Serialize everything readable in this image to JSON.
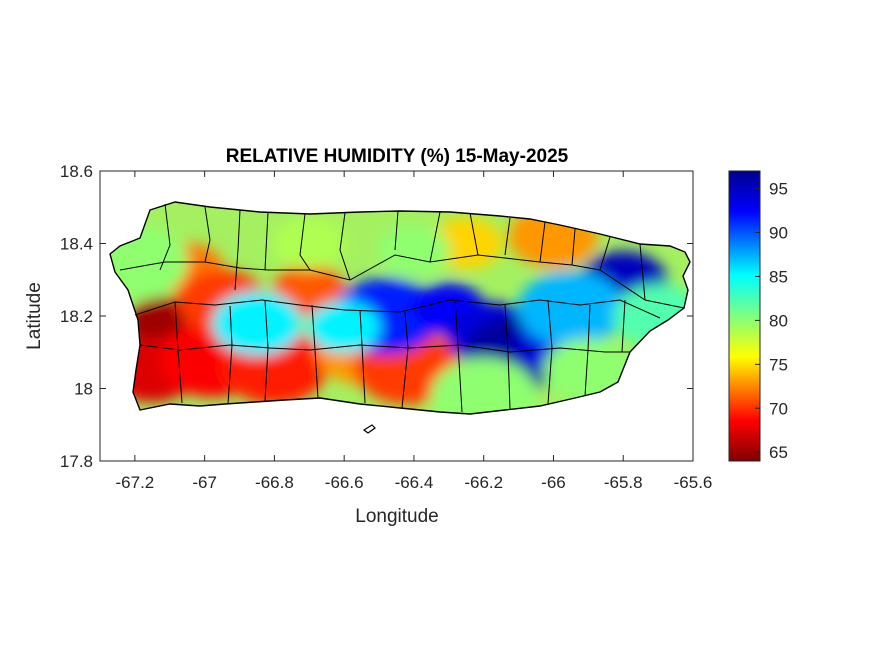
{
  "title": "RELATIVE HUMIDITY (%) 15-May-2025",
  "chart_data": {
    "type": "heatmap",
    "title": "RELATIVE HUMIDITY (%) 15-May-2025",
    "xlabel": "Longitude",
    "ylabel": "Latitude",
    "xlim": [
      -67.3,
      -65.6
    ],
    "ylim": [
      17.8,
      18.6
    ],
    "xticks": [
      -67.2,
      -67,
      -66.8,
      -66.6,
      -66.4,
      -66.2,
      -66,
      -65.8,
      -65.6
    ],
    "xtick_labels": [
      "-67.2",
      "-67",
      "-66.8",
      "-66.6",
      "-66.4",
      "-66.2",
      "-66",
      "-65.8",
      "-65.6"
    ],
    "yticks": [
      17.8,
      18,
      18.2,
      18.4,
      18.6
    ],
    "ytick_labels": [
      "17.8",
      "18",
      "18.2",
      "18.4",
      "18.6"
    ],
    "colorbar": {
      "min": 64,
      "max": 97,
      "ticks": [
        65,
        70,
        75,
        80,
        85,
        90,
        95
      ],
      "tick_labels": [
        "65",
        "70",
        "75",
        "80",
        "85",
        "90",
        "95"
      ],
      "colormap": "jet"
    },
    "features": [
      {
        "lon": -67.12,
        "lat": 18.18,
        "value": 65
      },
      {
        "lon": -67.15,
        "lat": 18.05,
        "value": 67
      },
      {
        "lon": -66.98,
        "lat": 18.08,
        "value": 68
      },
      {
        "lon": -67.05,
        "lat": 18.33,
        "value": 72
      },
      {
        "lon": -66.95,
        "lat": 18.24,
        "value": 70
      },
      {
        "lon": -66.8,
        "lat": 18.06,
        "value": 69
      },
      {
        "lon": -66.7,
        "lat": 18.27,
        "value": 71
      },
      {
        "lon": -66.55,
        "lat": 18.1,
        "value": 73
      },
      {
        "lon": -66.42,
        "lat": 18.06,
        "value": 70
      },
      {
        "lon": -66.25,
        "lat": 18.4,
        "value": 75
      },
      {
        "lon": -66.0,
        "lat": 18.42,
        "value": 73
      },
      {
        "lon": -66.48,
        "lat": 18.2,
        "value": 92
      },
      {
        "lon": -66.3,
        "lat": 18.22,
        "value": 93
      },
      {
        "lon": -66.18,
        "lat": 18.15,
        "value": 94
      },
      {
        "lon": -66.1,
        "lat": 18.1,
        "value": 96
      },
      {
        "lon": -66.0,
        "lat": 18.12,
        "value": 94
      },
      {
        "lon": -65.8,
        "lat": 18.29,
        "value": 95
      },
      {
        "lon": -65.95,
        "lat": 18.22,
        "value": 87
      },
      {
        "lon": -66.6,
        "lat": 18.17,
        "value": 85
      },
      {
        "lon": -66.85,
        "lat": 18.18,
        "value": 85
      },
      {
        "lon": -67.2,
        "lat": 18.35,
        "value": 80
      },
      {
        "lon": -66.4,
        "lat": 18.38,
        "value": 80
      },
      {
        "lon": -65.7,
        "lat": 18.2,
        "value": 82
      },
      {
        "lon": -66.2,
        "lat": 17.98,
        "value": 80
      },
      {
        "lon": -66.7,
        "lat": 18.4,
        "value": 79
      },
      {
        "lon": -65.9,
        "lat": 18.05,
        "value": 80
      }
    ]
  }
}
